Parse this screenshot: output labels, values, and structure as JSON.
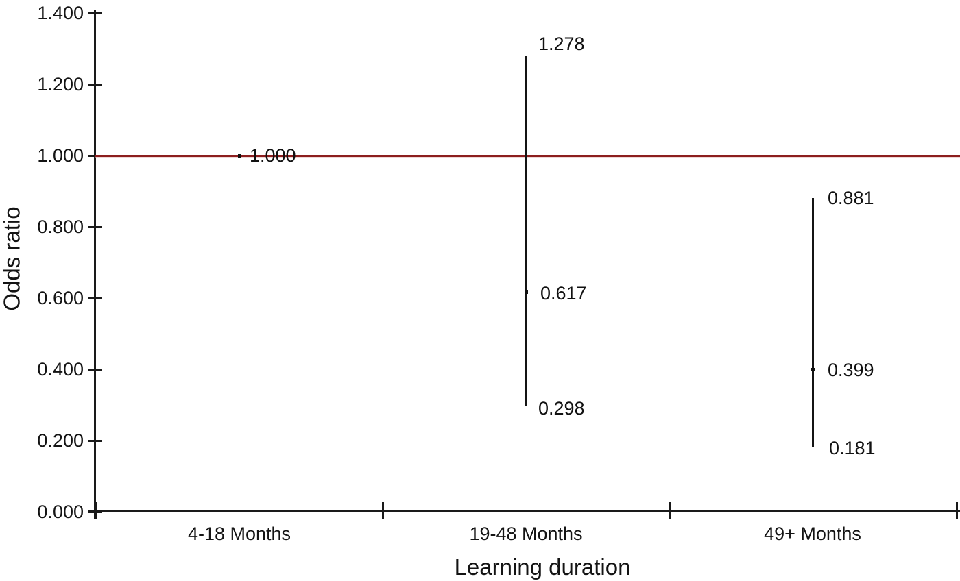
{
  "chart_data": {
    "type": "scatter",
    "subtype": "error-bar-odds-ratio",
    "title": "",
    "xlabel": "Learning duration",
    "ylabel": "Odds ratio",
    "ylim": [
      0.0,
      1.4
    ],
    "ytick_labels": [
      "0.000",
      "0.200",
      "0.400",
      "0.600",
      "0.800",
      "1.000",
      "1.200",
      "1.400"
    ],
    "grid": false,
    "legend": false,
    "reference_line": {
      "value": 1.0
    },
    "categories": [
      "4-18 Months",
      "19-48 Months",
      "49+ Months"
    ],
    "points": [
      {
        "category": "4-18 Months",
        "value": 1.0,
        "value_label": "1.000",
        "ci_low": null,
        "ci_low_label": null,
        "ci_high": null,
        "ci_high_label": null
      },
      {
        "category": "19-48 Months",
        "value": 0.617,
        "value_label": "0.617",
        "ci_low": 0.298,
        "ci_low_label": "0.298",
        "ci_high": 1.278,
        "ci_high_label": "1.278"
      },
      {
        "category": "49+ Months",
        "value": 0.399,
        "value_label": "0.399",
        "ci_low": 0.181,
        "ci_low_label": "0.181",
        "ci_high": 0.881,
        "ci_high_label": "0.881"
      }
    ],
    "colors": {
      "axis": "#1a1a1a",
      "text": "#141414",
      "reference_line": "#8C1E1E",
      "reference_line_halo": "#E3B6B4",
      "marker": "#111111",
      "background": "#ffffff"
    }
  }
}
